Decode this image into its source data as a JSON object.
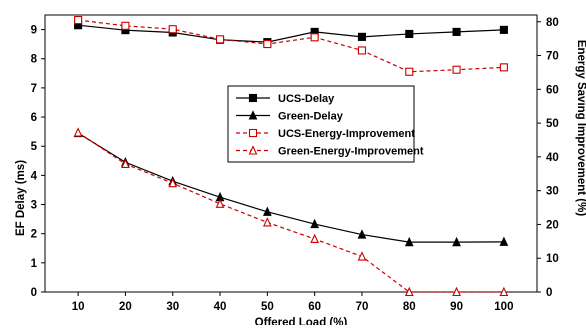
{
  "chart_data": {
    "type": "line",
    "x": [
      10,
      20,
      30,
      40,
      50,
      60,
      70,
      80,
      90,
      100
    ],
    "xlabel": "Offered Load (%)",
    "ylabel": "EF Delay (ms)",
    "y2label": "Energy Saving Improvement (%)",
    "xlim": [
      3,
      107
    ],
    "ylim": [
      0,
      9.5
    ],
    "y2lim": [
      0,
      82
    ],
    "xticks": [
      10,
      20,
      30,
      40,
      50,
      60,
      70,
      80,
      90,
      100
    ],
    "yticks": [
      0,
      1,
      2,
      3,
      4,
      5,
      6,
      7,
      8,
      9
    ],
    "y2ticks": [
      0,
      10,
      20,
      30,
      40,
      50,
      60,
      70,
      80
    ],
    "grid": false,
    "legend_position": "center",
    "series": [
      {
        "name": "UCS-Delay",
        "axis": "left",
        "color": "#000000",
        "line": "solid",
        "marker": "square-filled",
        "values": [
          9.15,
          8.98,
          8.9,
          8.65,
          8.57,
          8.92,
          8.75,
          8.85,
          8.92,
          8.99
        ]
      },
      {
        "name": "Green-Delay",
        "axis": "left",
        "color": "#000000",
        "line": "solid",
        "marker": "triangle-filled",
        "values": [
          5.45,
          4.45,
          3.8,
          3.25,
          2.75,
          2.33,
          1.97,
          1.71,
          1.71,
          1.72
        ]
      },
      {
        "name": "UCS-Energy-Improvement",
        "axis": "right",
        "color": "#cc0000",
        "line": "dashed",
        "marker": "square-open",
        "values": [
          80.5,
          78.8,
          77.8,
          74.8,
          73.4,
          75.4,
          71.5,
          65.2,
          65.8,
          66.5
        ]
      },
      {
        "name": "Green-Energy-Improvement",
        "axis": "right",
        "color": "#cc0000",
        "line": "dashed",
        "marker": "triangle-open",
        "values": [
          47.2,
          37.9,
          32.2,
          26.1,
          20.6,
          15.7,
          10.5,
          0,
          0,
          0
        ]
      }
    ]
  }
}
